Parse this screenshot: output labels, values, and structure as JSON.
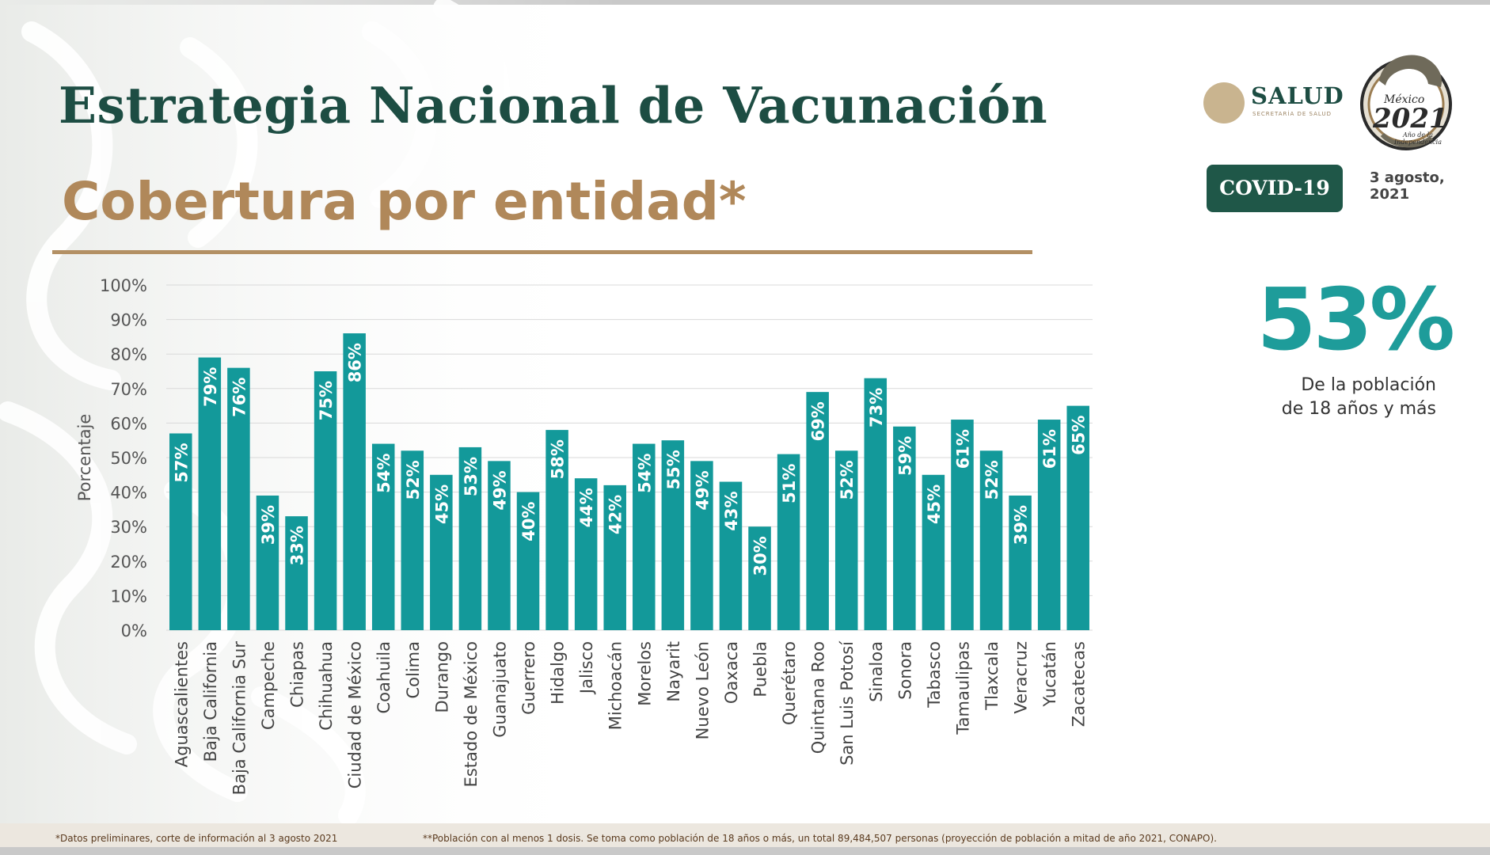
{
  "header": {
    "title": "Estrategia Nacional de Vacunación",
    "subtitle": "Cobertura por entidad*"
  },
  "logos": {
    "salud_name": "SALUD",
    "salud_subtitle": "SECRETARÍA DE SALUD",
    "mexico_country": "México",
    "mexico_year": "2021",
    "mexico_tagline": "Año de la Independencia"
  },
  "badge": {
    "label": "COVID-19",
    "date_line1": "3 agosto,",
    "date_line2": "2021"
  },
  "summary": {
    "value": "53%",
    "label_line1": "De la población",
    "label_line2": "de 18 años y más"
  },
  "colors": {
    "title": "#1d4d43",
    "subtitle": "#b0885a",
    "bar": "#13999a",
    "highlight": "#1e9c9a",
    "badge": "#1f5748"
  },
  "chart_data": {
    "type": "bar",
    "ylabel": "Porcentaje",
    "ylim": [
      0,
      100
    ],
    "yticks": [
      "0%",
      "10%",
      "20%",
      "30%",
      "40%",
      "50%",
      "60%",
      "70%",
      "80%",
      "90%",
      "100%"
    ],
    "grid": true,
    "categories": [
      "Aguascalientes",
      "Baja California",
      "Baja California Sur",
      "Campeche",
      "Chiapas",
      "Chihuahua",
      "Ciudad de México",
      "Coahuila",
      "Colima",
      "Durango",
      "Estado de México",
      "Guanajuato",
      "Guerrero",
      "Hidalgo",
      "Jalisco",
      "Michoacán",
      "Morelos",
      "Nayarit",
      "Nuevo León",
      "Oaxaca",
      "Puebla",
      "Querétaro",
      "Quintana Roo",
      "San Luis Potosí",
      "Sinaloa",
      "Sonora",
      "Tabasco",
      "Tamaulipas",
      "Tlaxcala",
      "Veracruz",
      "Yucatán",
      "Zacatecas"
    ],
    "values": [
      57,
      79,
      76,
      39,
      33,
      75,
      86,
      54,
      52,
      45,
      53,
      49,
      40,
      58,
      44,
      42,
      54,
      55,
      49,
      43,
      30,
      51,
      69,
      52,
      73,
      59,
      45,
      61,
      52,
      39,
      61,
      65
    ],
    "data_labels": [
      "57%",
      "79%",
      "76%",
      "39%",
      "33%",
      "75%",
      "86%",
      "54%",
      "52%",
      "45%",
      "53%",
      "49%",
      "40%",
      "58%",
      "44%",
      "42%",
      "54%",
      "55%",
      "49%",
      "43%",
      "30%",
      "51%",
      "69%",
      "52%",
      "73%",
      "59%",
      "45%",
      "61%",
      "52%",
      "39%",
      "61%",
      "65%"
    ]
  },
  "footnotes": {
    "note1": "*Datos preliminares, corte de información al 3 agosto  2021",
    "note2": "**Población con al menos 1 dosis. Se toma como población de 18 años o más, un total 89,484,507 personas (proyección de población a mitad de año 2021, CONAPO)."
  }
}
